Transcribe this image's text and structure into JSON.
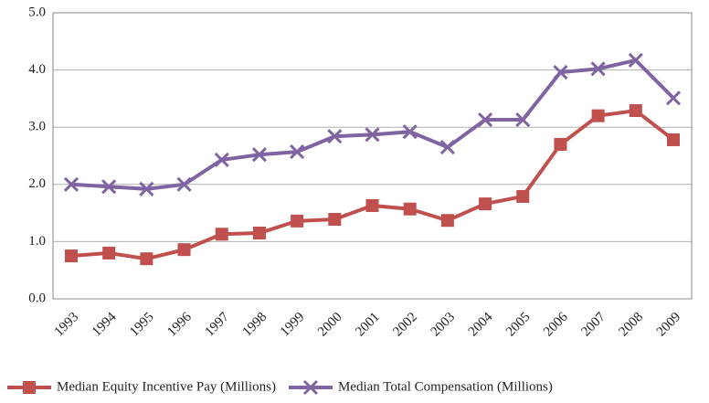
{
  "chart_data": {
    "type": "line",
    "categories": [
      "1993",
      "1994",
      "1995",
      "1996",
      "1997",
      "1998",
      "1999",
      "2000",
      "2001",
      "2002",
      "2003",
      "2004",
      "2005",
      "2006",
      "2007",
      "2008",
      "2009"
    ],
    "series": [
      {
        "name": "Median Equity Incentive Pay (Millions)",
        "color": "#c0504d",
        "marker": "square",
        "values": [
          0.75,
          0.8,
          0.7,
          0.86,
          1.13,
          1.15,
          1.36,
          1.39,
          1.63,
          1.57,
          1.37,
          1.66,
          1.79,
          2.7,
          3.2,
          3.29,
          2.78
        ]
      },
      {
        "name": "Median Total Compensation (Millions)",
        "color": "#8064a2",
        "marker": "x",
        "values": [
          2.0,
          1.96,
          1.92,
          2.0,
          2.43,
          2.52,
          2.57,
          2.84,
          2.87,
          2.92,
          2.65,
          3.13,
          3.13,
          3.96,
          4.02,
          4.17,
          3.51
        ]
      }
    ],
    "ylim": [
      0,
      5
    ],
    "yticks": [
      {
        "value": 0,
        "label": "0.0"
      },
      {
        "value": 1,
        "label": "1.0"
      },
      {
        "value": 2,
        "label": "2.0"
      },
      {
        "value": 3,
        "label": "3.0"
      },
      {
        "value": 4,
        "label": "4.0"
      },
      {
        "value": 5,
        "label": "5.0"
      }
    ],
    "grid": true,
    "legend": "bottom"
  }
}
